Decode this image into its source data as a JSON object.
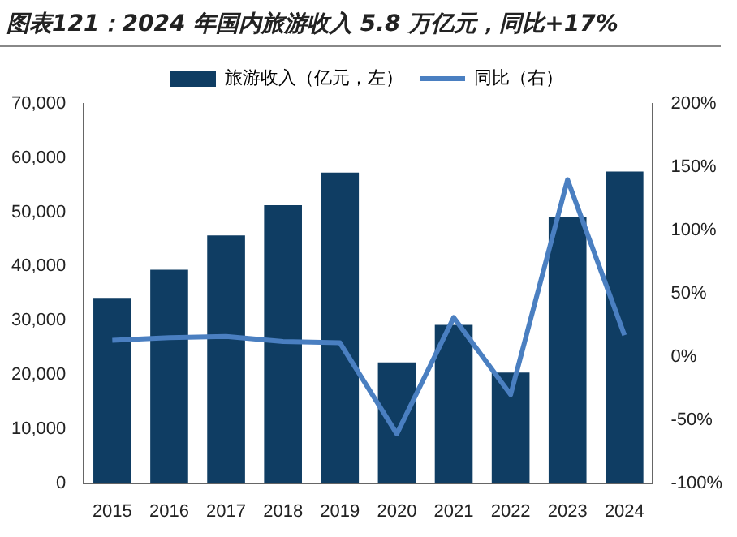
{
  "chart_data": {
    "type": "bar",
    "title": "图表121：2024 年国内旅游收入 5.8 万亿元，同比+17%",
    "categories": [
      "2015",
      "2016",
      "2017",
      "2018",
      "2019",
      "2020",
      "2021",
      "2022",
      "2023",
      "2024"
    ],
    "series": [
      {
        "name": "旅游收入（亿元，左）",
        "color": "#0f3d63",
        "values": [
          34200,
          39400,
          45700,
          51300,
          57300,
          22300,
          29200,
          20400,
          49100,
          57500
        ]
      },
      {
        "name": "同比（右）",
        "type": "line",
        "axis": "y2",
        "color": "#4a7fc1",
        "values": [
          13,
          15,
          16,
          12,
          11,
          -61,
          31,
          -30,
          140,
          17
        ]
      }
    ],
    "ylim": [
      0,
      70000
    ],
    "yticks": [
      {
        "value": 0,
        "label": "0"
      },
      {
        "value": 10000,
        "label": "10,000"
      },
      {
        "value": 20000,
        "label": "20,000"
      },
      {
        "value": 30000,
        "label": "30,000"
      },
      {
        "value": 40000,
        "label": "40,000"
      },
      {
        "value": 50000,
        "label": "50,000"
      },
      {
        "value": 60000,
        "label": "60,000"
      },
      {
        "value": 70000,
        "label": "70,000"
      }
    ],
    "y2lim": [
      -100,
      200
    ],
    "y2ticks": [
      {
        "value": -100,
        "label": "-100%"
      },
      {
        "value": -50,
        "label": "-50%"
      },
      {
        "value": 0,
        "label": "0%"
      },
      {
        "value": 50,
        "label": "50%"
      },
      {
        "value": 100,
        "label": "100%"
      },
      {
        "value": 150,
        "label": "150%"
      },
      {
        "value": 200,
        "label": "200%"
      }
    ],
    "grid": false,
    "legend": "top",
    "marker": "none",
    "line_style": "solid"
  }
}
